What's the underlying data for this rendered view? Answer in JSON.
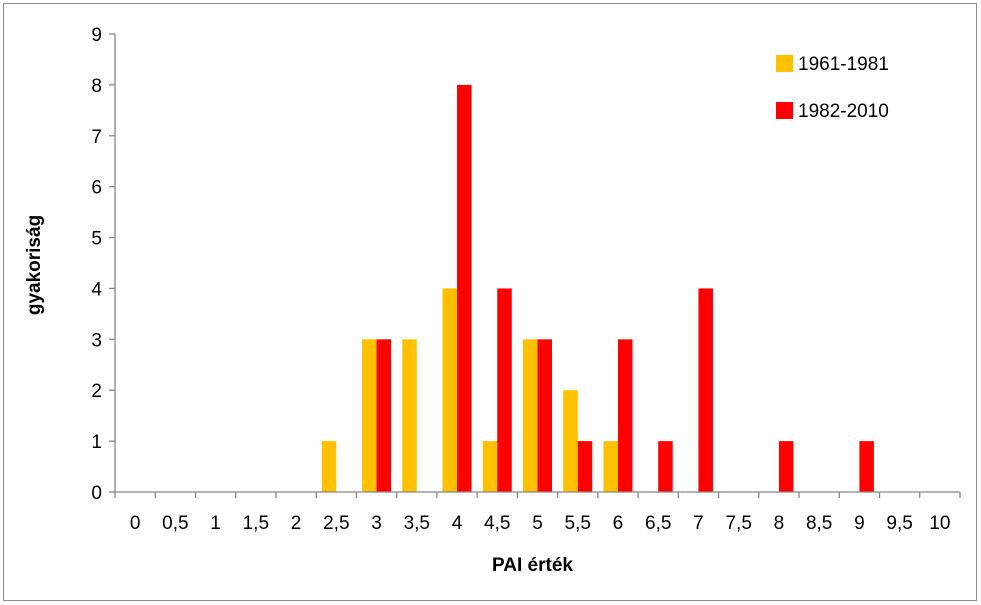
{
  "chart_data": {
    "type": "bar",
    "categories": [
      "0",
      "0,5",
      "1",
      "1,5",
      "2",
      "2,5",
      "3",
      "3,5",
      "4",
      "4,5",
      "5",
      "5,5",
      "6",
      "6,5",
      "7",
      "7,5",
      "8",
      "8,5",
      "9",
      "9,5",
      "10"
    ],
    "series": [
      {
        "name": "1961-1981",
        "color": "#FFC000",
        "values": [
          0,
          0,
          0,
          0,
          0,
          1,
          3,
          3,
          4,
          1,
          3,
          2,
          1,
          0,
          0,
          0,
          0,
          0,
          0,
          0,
          0
        ]
      },
      {
        "name": "1982-2010",
        "color": "#FF0000",
        "values": [
          0,
          0,
          0,
          0,
          0,
          0,
          3,
          0,
          8,
          4,
          3,
          1,
          3,
          1,
          4,
          0,
          1,
          0,
          1,
          0,
          0
        ]
      }
    ],
    "title": "",
    "xlabel": "PAI érték",
    "ylabel": "gyakoriság",
    "ylim": [
      0,
      9
    ],
    "yticks": [
      0,
      1,
      2,
      3,
      4,
      5,
      6,
      7,
      8,
      9
    ],
    "grid": false,
    "legend_position": "top-right"
  }
}
